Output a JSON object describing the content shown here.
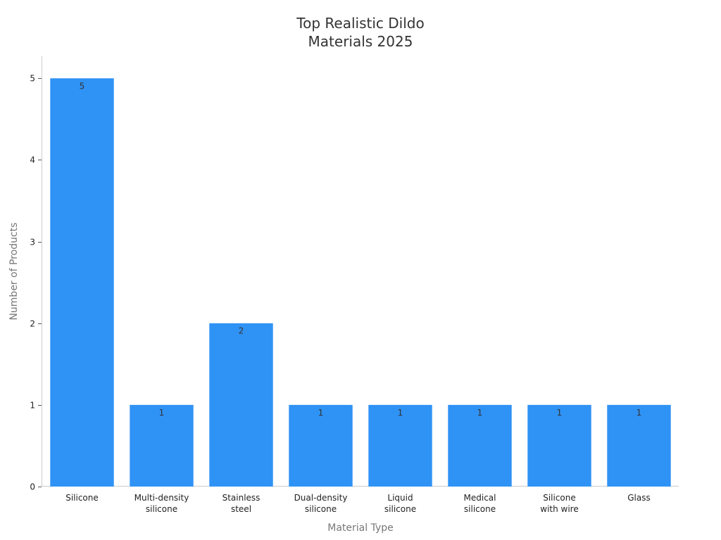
{
  "chart_data": {
    "type": "bar",
    "title_lines": [
      "Top Realistic Dildo",
      "Materials 2025"
    ],
    "xlabel": "Material Type",
    "ylabel": "Number of Products",
    "categories": [
      [
        "Silicone"
      ],
      [
        "Multi-density",
        "silicone"
      ],
      [
        "Stainless",
        "steel"
      ],
      [
        "Dual-density",
        "silicone"
      ],
      [
        "Liquid",
        "silicone"
      ],
      [
        "Medical",
        "silicone"
      ],
      [
        "Silicone",
        "with wire"
      ],
      [
        "Glass"
      ]
    ],
    "values": [
      5,
      1,
      2,
      1,
      1,
      1,
      1,
      1
    ],
    "data_labels": [
      "5",
      "1",
      "2",
      "1",
      "1",
      "1",
      "1",
      "1"
    ],
    "yticks": [
      0,
      1,
      2,
      3,
      4,
      5
    ],
    "ylim": [
      0,
      5.27
    ],
    "grid": false,
    "bar_color": "#2f92f5"
  }
}
